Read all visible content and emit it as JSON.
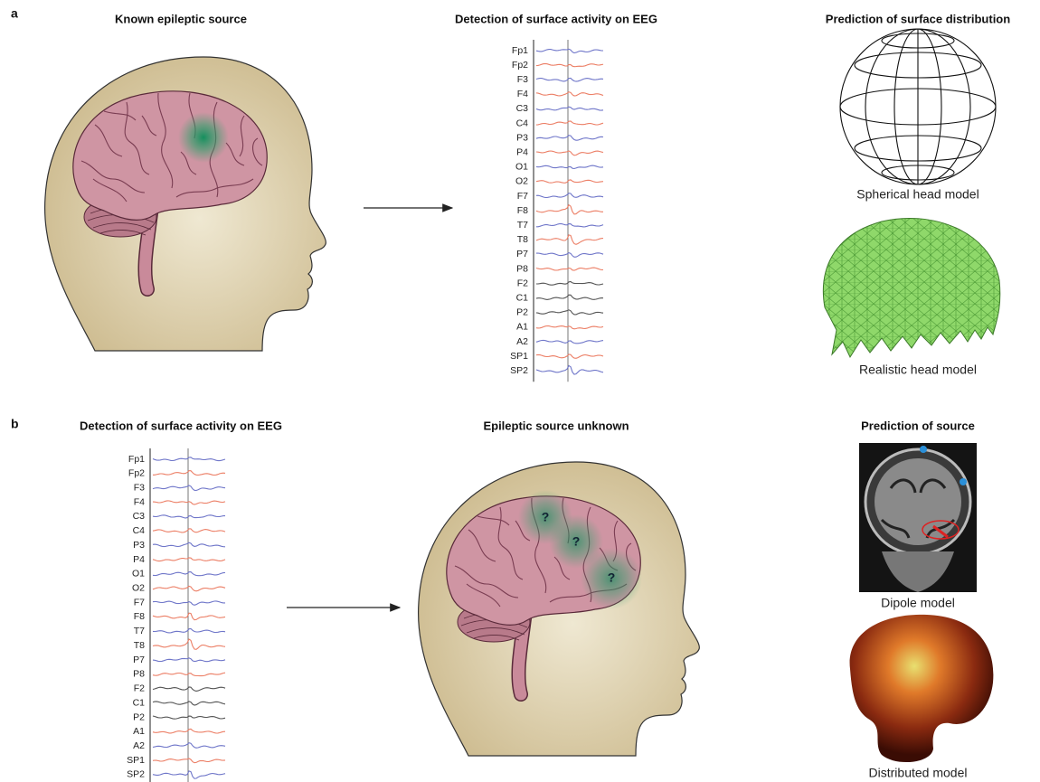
{
  "panel_a": {
    "label": "a",
    "source_title": "Known epileptic source",
    "eeg_title": "Detection of surface activity on EEG",
    "channels": [
      "Fp1",
      "Fp2",
      "F3",
      "F4",
      "C3",
      "C4",
      "P3",
      "P4",
      "O1",
      "O2",
      "F7",
      "F8",
      "T7",
      "T8",
      "P7",
      "P8",
      "F2",
      "C1",
      "P2",
      "A1",
      "A2",
      "SP1",
      "SP2"
    ],
    "prediction_title": "Prediction of surface distribution",
    "models": [
      "Spherical head model",
      "Realistic head model"
    ]
  },
  "panel_b": {
    "label": "b",
    "eeg_title": "Detection of surface activity on EEG",
    "channels": [
      "Fp1",
      "Fp2",
      "F3",
      "F4",
      "C3",
      "C4",
      "P3",
      "P4",
      "O1",
      "O2",
      "F7",
      "F8",
      "T7",
      "T8",
      "P7",
      "P8",
      "F2",
      "C1",
      "P2",
      "A1",
      "A2",
      "SP1",
      "SP2"
    ],
    "source_title": "Epileptic source unknown",
    "unknown_marks": [
      "?",
      "?",
      "?"
    ],
    "prediction_title": "Prediction of source",
    "models": [
      "Dipole model",
      "Distributed model"
    ]
  }
}
